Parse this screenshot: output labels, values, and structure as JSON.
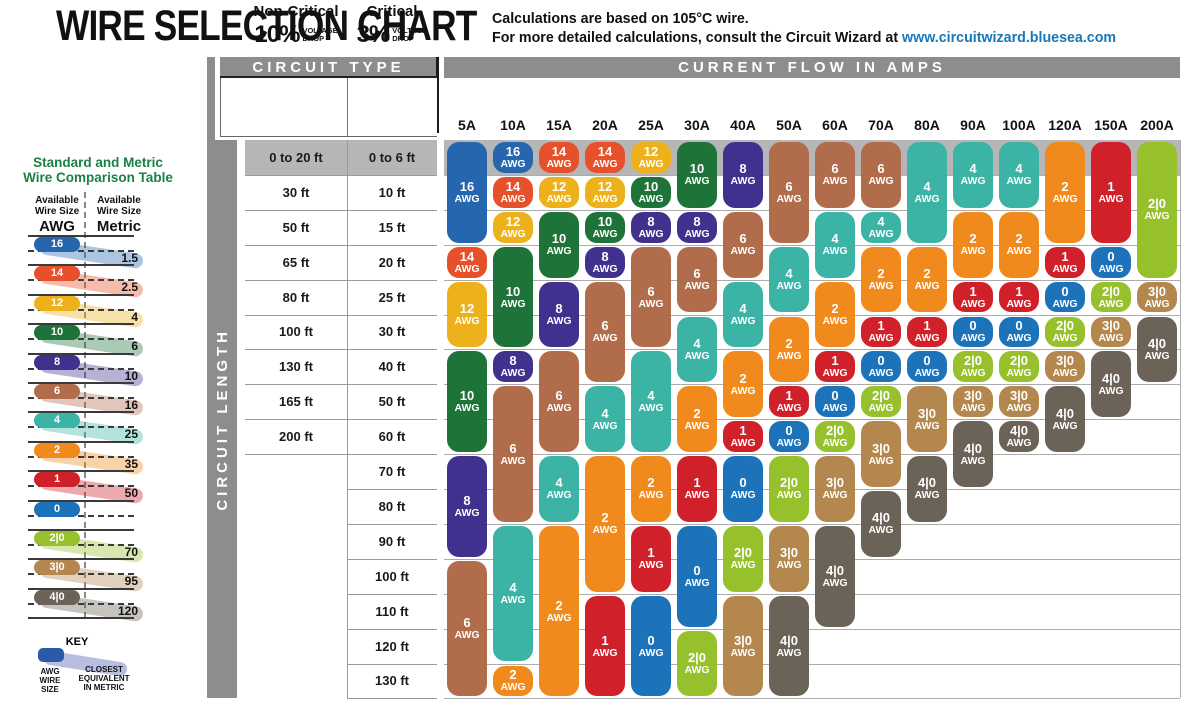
{
  "title": "WIRE SELECTION CHART",
  "subtitle": {
    "line1": "Calculations are based on 105°C wire.",
    "line2_prefix": "For more detailed calculations, consult the Circuit Wizard at ",
    "link": "www.circuitwizard.bluesea.com"
  },
  "header": {
    "circuit_type": "CIRCUIT TYPE",
    "current_flow": "CURRENT FLOW IN AMPS",
    "circuit_length": "CIRCUIT LENGTH",
    "voltage1": "VOLTAGE",
    "voltage2": "DROP",
    "non_critical": {
      "title": "Non-Critical",
      "percent": "10%"
    },
    "critical": {
      "title": "Critical",
      "percent": "3%"
    }
  },
  "sidebar": {
    "title": "Standard and Metric\nWire Comparison Table",
    "col_left": {
      "head": "Available\nWire Size",
      "unit": "AWG"
    },
    "col_right": {
      "head": "Available\nWire Size",
      "unit": "Metric"
    },
    "pairs": [
      {
        "awg": "16",
        "metric": "1.5"
      },
      {
        "awg": "14",
        "metric": "2.5"
      },
      {
        "awg": "12",
        "metric": "4"
      },
      {
        "awg": "10",
        "metric": "6"
      },
      {
        "awg": "8",
        "metric": "10"
      },
      {
        "awg": "6",
        "metric": "16"
      },
      {
        "awg": "4",
        "metric": "25"
      },
      {
        "awg": "2",
        "metric": "35"
      },
      {
        "awg": "1",
        "metric": "50"
      },
      {
        "awg": "0",
        "metric": ""
      },
      {
        "awg": "2|0",
        "metric": "70"
      },
      {
        "awg": "3|0",
        "metric": "95"
      },
      {
        "awg": "4|0",
        "metric": "120"
      }
    ],
    "key": {
      "title": "KEY",
      "left_label": "AWG\nWIRE\nSIZE",
      "right_label": "CLOSEST\nEQUIVALENT\nIN METRIC"
    }
  },
  "wire_colors": {
    "16": "#2566ae",
    "14": "#e6502b",
    "12": "#edb11c",
    "10": "#1e7339",
    "8": "#41318f",
    "6": "#b16c4c",
    "4": "#3bb3a5",
    "2": "#f08a1d",
    "1": "#d0202a",
    "0": "#1d73b9",
    "2|0": "#96c02c",
    "3|0": "#b3874e",
    "4|0": "#6b6357"
  },
  "accent": {
    "header_bar": "#8d8d8d",
    "row_band": "#b6b6b6",
    "link_color": "#1878b8",
    "sidebar_title_color": "#1d8045",
    "key_pill": "#2b5aa9",
    "key_band": "#b7bedf"
  },
  "chart_data": {
    "type": "table",
    "title": "WIRE SELECTION CHART",
    "x_header": "CURRENT FLOW IN AMPS",
    "y_header": "CIRCUIT LENGTH",
    "awg_unit_label": "AWG",
    "row_labels": {
      "non_critical_10pct": [
        "0 to 20 ft",
        "30 ft",
        "50 ft",
        "65 ft",
        "80 ft",
        "100 ft",
        "130 ft",
        "165 ft",
        "200 ft",
        "",
        "",
        "",
        "",
        "",
        "",
        ""
      ],
      "critical_3pct": [
        "0 to 6 ft",
        "10 ft",
        "15 ft",
        "20 ft",
        "25 ft",
        "30 ft",
        "40 ft",
        "50 ft",
        "60 ft",
        "70 ft",
        "80 ft",
        "90 ft",
        "100 ft",
        "110 ft",
        "120 ft",
        "130 ft"
      ]
    },
    "columns": [
      {
        "amp": "5A",
        "segments": [
          {
            "awg": "16",
            "start": 1,
            "end": 3
          },
          {
            "awg": "14",
            "start": 4,
            "end": 4
          },
          {
            "awg": "12",
            "start": 5,
            "end": 6
          },
          {
            "awg": "10",
            "start": 7,
            "end": 9
          },
          {
            "awg": "8",
            "start": 10,
            "end": 12
          },
          {
            "awg": "6",
            "start": 13,
            "end": 16
          }
        ]
      },
      {
        "amp": "10A",
        "segments": [
          {
            "awg": "16",
            "start": 1,
            "end": 1
          },
          {
            "awg": "14",
            "start": 2,
            "end": 2
          },
          {
            "awg": "12",
            "start": 3,
            "end": 3
          },
          {
            "awg": "10",
            "start": 4,
            "end": 6
          },
          {
            "awg": "8",
            "start": 7,
            "end": 7
          },
          {
            "awg": "6",
            "start": 8,
            "end": 11
          },
          {
            "awg": "4",
            "start": 12,
            "end": 15
          },
          {
            "awg": "2",
            "start": 16,
            "end": 16
          }
        ]
      },
      {
        "amp": "15A",
        "segments": [
          {
            "awg": "14",
            "start": 1,
            "end": 1
          },
          {
            "awg": "12",
            "start": 2,
            "end": 2
          },
          {
            "awg": "10",
            "start": 3,
            "end": 4
          },
          {
            "awg": "8",
            "start": 5,
            "end": 6
          },
          {
            "awg": "6",
            "start": 7,
            "end": 9
          },
          {
            "awg": "4",
            "start": 10,
            "end": 11
          },
          {
            "awg": "2",
            "start": 12,
            "end": 16
          }
        ]
      },
      {
        "amp": "20A",
        "segments": [
          {
            "awg": "14",
            "start": 1,
            "end": 1
          },
          {
            "awg": "12",
            "start": 2,
            "end": 2
          },
          {
            "awg": "10",
            "start": 3,
            "end": 3
          },
          {
            "awg": "8",
            "start": 4,
            "end": 4
          },
          {
            "awg": "6",
            "start": 5,
            "end": 7
          },
          {
            "awg": "4",
            "start": 8,
            "end": 9
          },
          {
            "awg": "2",
            "start": 10,
            "end": 13
          },
          {
            "awg": "1",
            "start": 14,
            "end": 16
          }
        ]
      },
      {
        "amp": "25A",
        "segments": [
          {
            "awg": "12",
            "start": 1,
            "end": 1
          },
          {
            "awg": "10",
            "start": 2,
            "end": 2
          },
          {
            "awg": "8",
            "start": 3,
            "end": 3
          },
          {
            "awg": "6",
            "start": 4,
            "end": 6
          },
          {
            "awg": "4",
            "start": 7,
            "end": 9
          },
          {
            "awg": "2",
            "start": 10,
            "end": 11
          },
          {
            "awg": "1",
            "start": 12,
            "end": 13
          },
          {
            "awg": "0",
            "start": 14,
            "end": 16
          }
        ]
      },
      {
        "amp": "30A",
        "segments": [
          {
            "awg": "10",
            "start": 1,
            "end": 2
          },
          {
            "awg": "8",
            "start": 3,
            "end": 3
          },
          {
            "awg": "6",
            "start": 4,
            "end": 5
          },
          {
            "awg": "4",
            "start": 6,
            "end": 7
          },
          {
            "awg": "2",
            "start": 8,
            "end": 9
          },
          {
            "awg": "1",
            "start": 10,
            "end": 11
          },
          {
            "awg": "0",
            "start": 12,
            "end": 14
          },
          {
            "awg": "2|0",
            "start": 15,
            "end": 16
          }
        ]
      },
      {
        "amp": "40A",
        "segments": [
          {
            "awg": "8",
            "start": 1,
            "end": 2
          },
          {
            "awg": "6",
            "start": 3,
            "end": 4
          },
          {
            "awg": "4",
            "start": 5,
            "end": 6
          },
          {
            "awg": "2",
            "start": 7,
            "end": 8
          },
          {
            "awg": "1",
            "start": 9,
            "end": 9
          },
          {
            "awg": "0",
            "start": 10,
            "end": 11
          },
          {
            "awg": "2|0",
            "start": 12,
            "end": 13
          },
          {
            "awg": "3|0",
            "start": 14,
            "end": 16
          }
        ]
      },
      {
        "amp": "50A",
        "segments": [
          {
            "awg": "6",
            "start": 1,
            "end": 3
          },
          {
            "awg": "4",
            "start": 4,
            "end": 5
          },
          {
            "awg": "2",
            "start": 6,
            "end": 7
          },
          {
            "awg": "1",
            "start": 8,
            "end": 8
          },
          {
            "awg": "0",
            "start": 9,
            "end": 9
          },
          {
            "awg": "2|0",
            "start": 10,
            "end": 11
          },
          {
            "awg": "3|0",
            "start": 12,
            "end": 13
          },
          {
            "awg": "4|0",
            "start": 14,
            "end": 16
          }
        ]
      },
      {
        "amp": "60A",
        "segments": [
          {
            "awg": "6",
            "start": 1,
            "end": 2
          },
          {
            "awg": "4",
            "start": 3,
            "end": 4
          },
          {
            "awg": "2",
            "start": 5,
            "end": 6
          },
          {
            "awg": "1",
            "start": 7,
            "end": 7
          },
          {
            "awg": "0",
            "start": 8,
            "end": 8
          },
          {
            "awg": "2|0",
            "start": 9,
            "end": 9
          },
          {
            "awg": "3|0",
            "start": 10,
            "end": 11
          },
          {
            "awg": "4|0",
            "start": 12,
            "end": 14
          }
        ]
      },
      {
        "amp": "70A",
        "segments": [
          {
            "awg": "6",
            "start": 1,
            "end": 2
          },
          {
            "awg": "4",
            "start": 3,
            "end": 3
          },
          {
            "awg": "2",
            "start": 4,
            "end": 5
          },
          {
            "awg": "1",
            "start": 6,
            "end": 6
          },
          {
            "awg": "0",
            "start": 7,
            "end": 7
          },
          {
            "awg": "2|0",
            "start": 8,
            "end": 8
          },
          {
            "awg": "3|0",
            "start": 9,
            "end": 10
          },
          {
            "awg": "4|0",
            "start": 11,
            "end": 12
          }
        ]
      },
      {
        "amp": "80A",
        "segments": [
          {
            "awg": "4",
            "start": 1,
            "end": 3
          },
          {
            "awg": "2",
            "start": 4,
            "end": 5
          },
          {
            "awg": "1",
            "start": 6,
            "end": 6
          },
          {
            "awg": "0",
            "start": 7,
            "end": 7
          },
          {
            "awg": "3|0",
            "start": 8,
            "end": 9
          },
          {
            "awg": "4|0",
            "start": 10,
            "end": 11
          }
        ]
      },
      {
        "amp": "90A",
        "segments": [
          {
            "awg": "4",
            "start": 1,
            "end": 2
          },
          {
            "awg": "2",
            "start": 3,
            "end": 4
          },
          {
            "awg": "1",
            "start": 5,
            "end": 5
          },
          {
            "awg": "0",
            "start": 6,
            "end": 6
          },
          {
            "awg": "2|0",
            "start": 7,
            "end": 7
          },
          {
            "awg": "3|0",
            "start": 8,
            "end": 8
          },
          {
            "awg": "4|0",
            "start": 9,
            "end": 10
          }
        ]
      },
      {
        "amp": "100A",
        "segments": [
          {
            "awg": "4",
            "start": 1,
            "end": 2
          },
          {
            "awg": "2",
            "start": 3,
            "end": 4
          },
          {
            "awg": "1",
            "start": 5,
            "end": 5
          },
          {
            "awg": "0",
            "start": 6,
            "end": 6
          },
          {
            "awg": "2|0",
            "start": 7,
            "end": 7
          },
          {
            "awg": "3|0",
            "start": 8,
            "end": 8
          },
          {
            "awg": "4|0",
            "start": 9,
            "end": 9
          }
        ]
      },
      {
        "amp": "120A",
        "segments": [
          {
            "awg": "2",
            "start": 1,
            "end": 3
          },
          {
            "awg": "1",
            "start": 4,
            "end": 4
          },
          {
            "awg": "0",
            "start": 5,
            "end": 5
          },
          {
            "awg": "2|0",
            "start": 6,
            "end": 6
          },
          {
            "awg": "3|0",
            "start": 7,
            "end": 7
          },
          {
            "awg": "4|0",
            "start": 8,
            "end": 9
          }
        ]
      },
      {
        "amp": "150A",
        "segments": [
          {
            "awg": "1",
            "start": 1,
            "end": 3
          },
          {
            "awg": "0",
            "start": 4,
            "end": 4
          },
          {
            "awg": "2|0",
            "start": 5,
            "end": 5
          },
          {
            "awg": "3|0",
            "start": 6,
            "end": 6
          },
          {
            "awg": "4|0",
            "start": 7,
            "end": 8
          }
        ]
      },
      {
        "amp": "200A",
        "segments": [
          {
            "awg": "2|0",
            "start": 1,
            "end": 4
          },
          {
            "awg": "3|0",
            "start": 5,
            "end": 5
          },
          {
            "awg": "4|0",
            "start": 6,
            "end": 7
          }
        ]
      }
    ]
  }
}
